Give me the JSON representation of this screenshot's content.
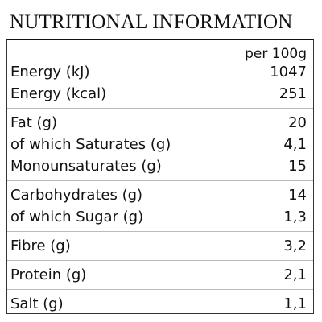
{
  "title": "NUTRITIONAL INFORMATION",
  "table": {
    "column_header": "per 100g",
    "groups": [
      [
        [
          "Energy (kJ)",
          "1047"
        ],
        [
          "Energy (kcal)",
          "251"
        ]
      ],
      [
        [
          "Fat (g)",
          "20"
        ],
        [
          "of which Saturates (g)",
          "4,1"
        ],
        [
          "Monounsaturates (g)",
          "15"
        ]
      ],
      [
        [
          "Carbohydrates (g)",
          "14"
        ],
        [
          "of which Sugar (g)",
          "1,3"
        ]
      ],
      [
        [
          "Fibre (g)",
          "3,2"
        ]
      ],
      [
        [
          "Protein (g)",
          "2,1"
        ]
      ],
      [
        [
          "Salt (g)",
          "1,1"
        ]
      ]
    ]
  }
}
